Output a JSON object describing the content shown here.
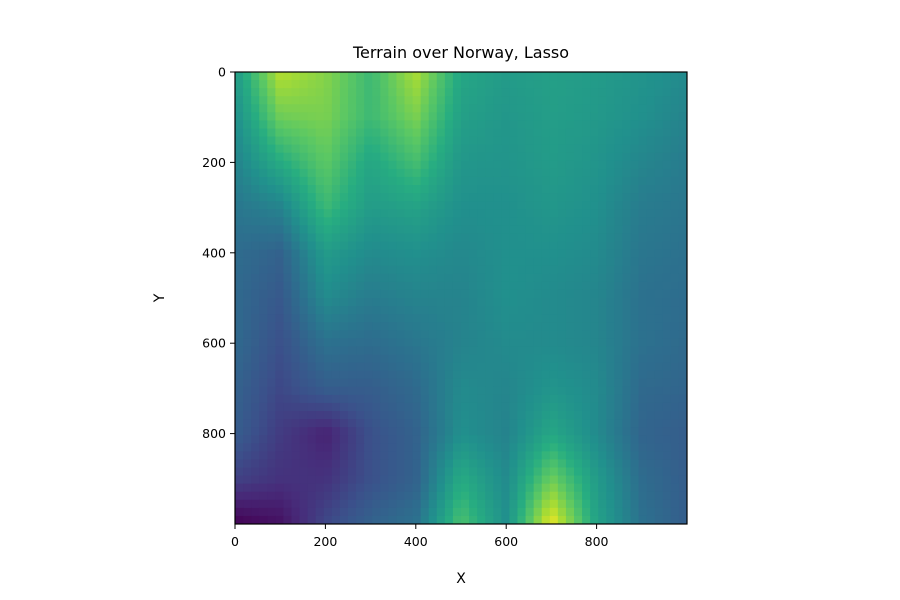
{
  "chart_data": {
    "type": "heatmap",
    "title": "Terrain over Norway, Lasso",
    "xlabel": "X",
    "ylabel": "Y",
    "xlim": [
      0,
      1000
    ],
    "ylim": [
      1000,
      0
    ],
    "y_axis_inverted": true,
    "xticks": [
      0,
      200,
      400,
      600,
      800
    ],
    "yticks": [
      0,
      200,
      400,
      600,
      800
    ],
    "xtick_labels": [
      "0",
      "200",
      "400",
      "600",
      "800"
    ],
    "ytick_labels": [
      "0",
      "200",
      "400",
      "600",
      "800"
    ],
    "colormap": "viridis",
    "value_range": [
      0,
      1
    ],
    "grid": false,
    "colorbar": false,
    "x": [
      0,
      100,
      200,
      300,
      400,
      500,
      600,
      700,
      800,
      900,
      1000
    ],
    "y": [
      0,
      100,
      200,
      300,
      400,
      500,
      600,
      700,
      800,
      900,
      1000
    ],
    "z_normalized": [
      [
        0.55,
        0.9,
        0.82,
        0.68,
        0.88,
        0.6,
        0.55,
        0.57,
        0.55,
        0.52,
        0.48
      ],
      [
        0.5,
        0.78,
        0.8,
        0.68,
        0.8,
        0.57,
        0.53,
        0.56,
        0.54,
        0.5,
        0.45
      ],
      [
        0.45,
        0.62,
        0.75,
        0.6,
        0.7,
        0.53,
        0.52,
        0.55,
        0.52,
        0.46,
        0.42
      ],
      [
        0.4,
        0.45,
        0.68,
        0.55,
        0.58,
        0.5,
        0.5,
        0.53,
        0.5,
        0.42,
        0.4
      ],
      [
        0.36,
        0.32,
        0.55,
        0.48,
        0.5,
        0.47,
        0.5,
        0.5,
        0.48,
        0.4,
        0.38
      ],
      [
        0.35,
        0.28,
        0.48,
        0.42,
        0.45,
        0.45,
        0.5,
        0.48,
        0.46,
        0.38,
        0.36
      ],
      [
        0.35,
        0.25,
        0.38,
        0.36,
        0.4,
        0.45,
        0.48,
        0.48,
        0.46,
        0.38,
        0.35
      ],
      [
        0.32,
        0.22,
        0.3,
        0.3,
        0.35,
        0.48,
        0.46,
        0.52,
        0.48,
        0.35,
        0.33
      ],
      [
        0.3,
        0.18,
        0.1,
        0.25,
        0.32,
        0.5,
        0.45,
        0.6,
        0.48,
        0.33,
        0.3
      ],
      [
        0.2,
        0.15,
        0.15,
        0.25,
        0.32,
        0.62,
        0.48,
        0.78,
        0.55,
        0.36,
        0.3
      ],
      [
        0.0,
        0.05,
        0.22,
        0.32,
        0.38,
        0.72,
        0.5,
        0.98,
        0.58,
        0.38,
        0.3
      ]
    ]
  }
}
